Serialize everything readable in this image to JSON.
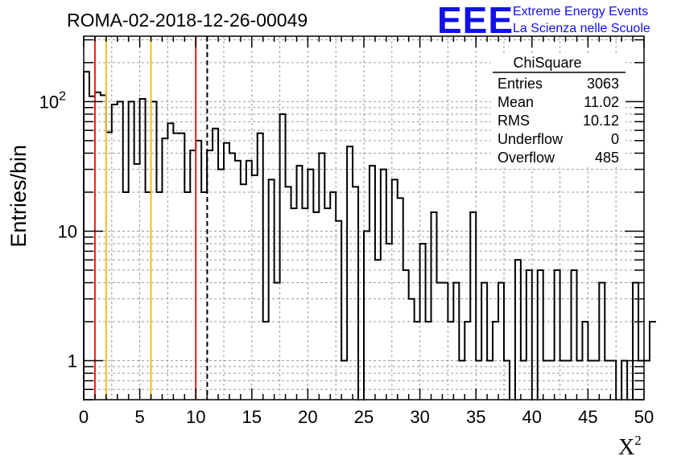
{
  "logo": {
    "mark": "EEE",
    "line1": "Extreme Energy Events",
    "line2": "La Scienza nelle Scuole",
    "color": "#1010e6"
  },
  "chart_data": {
    "type": "histogram",
    "title": "ROMA-02-2018-12-26-00049",
    "xlabel": "X",
    "xlabel_sup": "2",
    "ylabel": "Entries/bin",
    "xlim": [
      0,
      50
    ],
    "ylim": [
      0.5,
      320
    ],
    "yscale": "log",
    "grid": true,
    "bin_width": 0.5,
    "x_ticks": [
      "0",
      "5",
      "10",
      "15",
      "20",
      "25",
      "30",
      "35",
      "40",
      "45",
      "50"
    ],
    "y_ticks": [
      {
        "value": 1,
        "label": "1"
      },
      {
        "value": 10,
        "label": "10"
      },
      {
        "value": 100,
        "label": "10",
        "sup": "2"
      }
    ],
    "bin_values": [
      170,
      110,
      118,
      112,
      58,
      95,
      100,
      20,
      100,
      33,
      105,
      20,
      100,
      20,
      52,
      68,
      57,
      57,
      20,
      42,
      50,
      20,
      42,
      62,
      30,
      48,
      40,
      35,
      23,
      35,
      27,
      57,
      2,
      25,
      4,
      80,
      22,
      15,
      32,
      15,
      30,
      14,
      40,
      15,
      20,
      12,
      1,
      45,
      22,
      0,
      10,
      32,
      6,
      30,
      8,
      25,
      18,
      5,
      3,
      2,
      8,
      2,
      14,
      4,
      4,
      2,
      4,
      1,
      2,
      14,
      1,
      4,
      1,
      2,
      4,
      1,
      0,
      6,
      1,
      5,
      0,
      5,
      1,
      1,
      5,
      1,
      1,
      5,
      1,
      2,
      1,
      1,
      4,
      1,
      1,
      0,
      1,
      0,
      4,
      1,
      1,
      2
    ],
    "vlines": [
      {
        "x": 1,
        "color": "#e02020",
        "style": "solid"
      },
      {
        "x": 2,
        "color": "#f0c020",
        "style": "solid"
      },
      {
        "x": 6,
        "color": "#f0c020",
        "style": "solid"
      },
      {
        "x": 10,
        "color": "#e02020",
        "style": "solid"
      },
      {
        "x": 11.02,
        "color": "#000000",
        "style": "dashed"
      }
    ],
    "stats": {
      "name": "ChiSquare",
      "rows": [
        {
          "label": "Entries",
          "value": "3063"
        },
        {
          "label": "Mean",
          "value": "11.02"
        },
        {
          "label": "RMS",
          "value": "10.12"
        },
        {
          "label": "Underflow",
          "value": "0"
        },
        {
          "label": "Overflow",
          "value": "485"
        }
      ]
    }
  }
}
